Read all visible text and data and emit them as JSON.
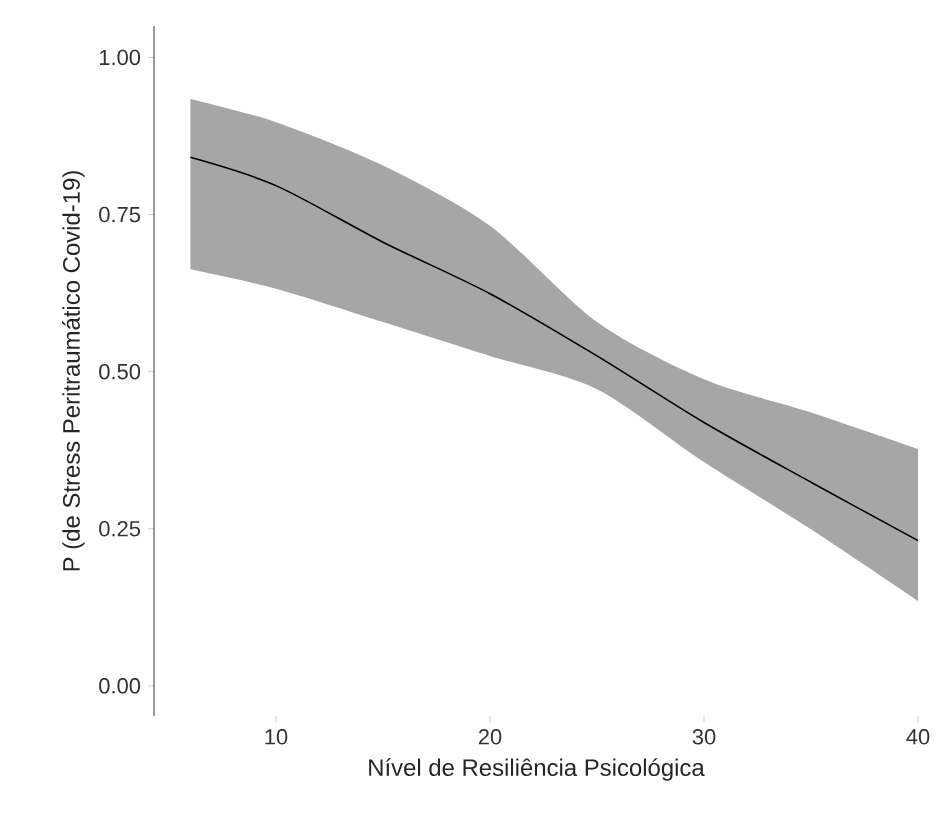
{
  "chart_data": {
    "type": "line",
    "xlabel": "Nível de Resiliência Psicológica",
    "ylabel": "P (de Stress Peritraumático Covid-19)",
    "xlim": [
      4.3,
      40
    ],
    "ylim": [
      -0.048,
      1.05
    ],
    "xticks": [
      10,
      20,
      30,
      40
    ],
    "yticks": [
      {
        "value": 0,
        "label": "0.00"
      },
      {
        "value": 0.25,
        "label": "0.25"
      },
      {
        "value": 0.5,
        "label": "0.50"
      },
      {
        "value": 0.75,
        "label": "0.75"
      },
      {
        "value": 1,
        "label": "1.00"
      }
    ],
    "grid": false,
    "line_style": "solid",
    "marker": "none",
    "series": [
      {
        "color": "#000000",
        "x": [
          6,
          10,
          15,
          20,
          25,
          30,
          35,
          40
        ],
        "values": [
          0.841,
          0.796,
          0.706,
          0.624,
          0.525,
          0.419,
          0.324,
          0.231
        ],
        "lower": [
          0.663,
          0.632,
          0.579,
          0.525,
          0.472,
          0.356,
          0.249,
          0.135
        ],
        "upper": [
          0.934,
          0.897,
          0.828,
          0.732,
          0.579,
          0.488,
          0.435,
          0.377
        ]
      }
    ]
  }
}
